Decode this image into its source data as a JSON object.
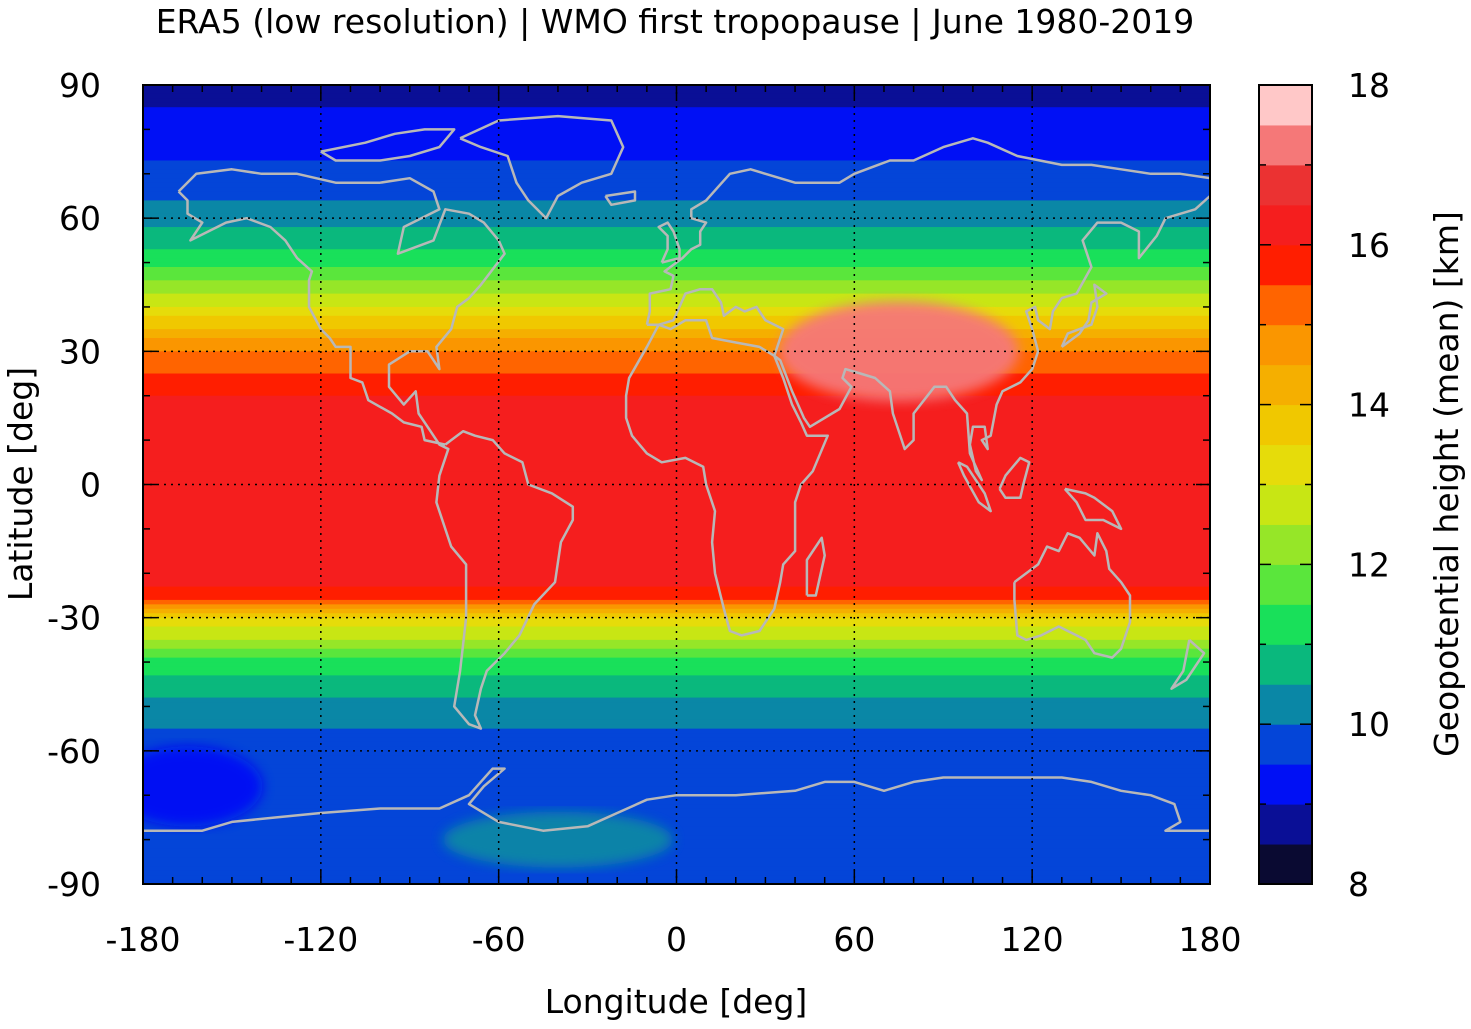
{
  "chart_data": {
    "type": "heatmap",
    "title": "ERA5 (low resolution) | WMO first tropopause | June 1980-2019",
    "xlabel": "Longitude [deg]",
    "ylabel": "Latitude [deg]",
    "colorbar_label": "Geopotential height (mean) [km]",
    "xlim": [
      -180,
      180
    ],
    "ylim": [
      -90,
      90
    ],
    "xticks": [
      "-180",
      "-120",
      "-60",
      "0",
      "60",
      "120",
      "180"
    ],
    "yticks": [
      "90",
      "60",
      "30",
      "0",
      "-30",
      "-60",
      "-90"
    ],
    "colorbar_range": [
      8,
      18
    ],
    "colorbar_ticks": [
      "8",
      "10",
      "12",
      "14",
      "16",
      "18"
    ],
    "grid": true,
    "levels": [
      8.0,
      8.5,
      9.0,
      9.5,
      10.0,
      10.5,
      11.0,
      11.5,
      12.0,
      12.5,
      13.0,
      13.5,
      14.0,
      14.5,
      15.0,
      15.5,
      16.0,
      16.5,
      17.0,
      17.5,
      18.0
    ],
    "colors": [
      "#0a0a32",
      "#0a0f96",
      "#0010f5",
      "#0445d8",
      "#0a87a6",
      "#0ab87d",
      "#19e05a",
      "#5ae63c",
      "#96e628",
      "#c8e614",
      "#e6dc0a",
      "#f0c800",
      "#f5af00",
      "#fa9600",
      "#ff6400",
      "#ff1e00",
      "#f51e1e",
      "#eb3232",
      "#f57878",
      "#ffc8c8"
    ],
    "zonal_profile": {
      "latitudes": [
        90,
        80,
        70,
        60,
        50,
        40,
        30,
        20,
        10,
        0,
        -10,
        -20,
        -25,
        -30,
        -40,
        -50,
        -60,
        -70,
        -80,
        -90
      ],
      "height_km": [
        8.7,
        9.3,
        9.6,
        10.3,
        11.3,
        13.0,
        15.0,
        16.0,
        16.2,
        16.3,
        16.3,
        16.3,
        15.8,
        13.5,
        11.3,
        10.3,
        9.7,
        9.6,
        10.0,
        9.6
      ]
    },
    "regional_features": [
      {
        "feature": "Asian monsoon anticyclone maximum",
        "lon": 75,
        "lat": 30,
        "height_km": 17.2
      },
      {
        "feature": "Antarctic blue minimum",
        "lon": -165,
        "lat": -68,
        "height_km": 9.2
      },
      {
        "feature": "Weddell Sea teal region",
        "lon": -40,
        "lat": -80,
        "height_km": 10.2
      }
    ],
    "overlay": "coastlines"
  }
}
